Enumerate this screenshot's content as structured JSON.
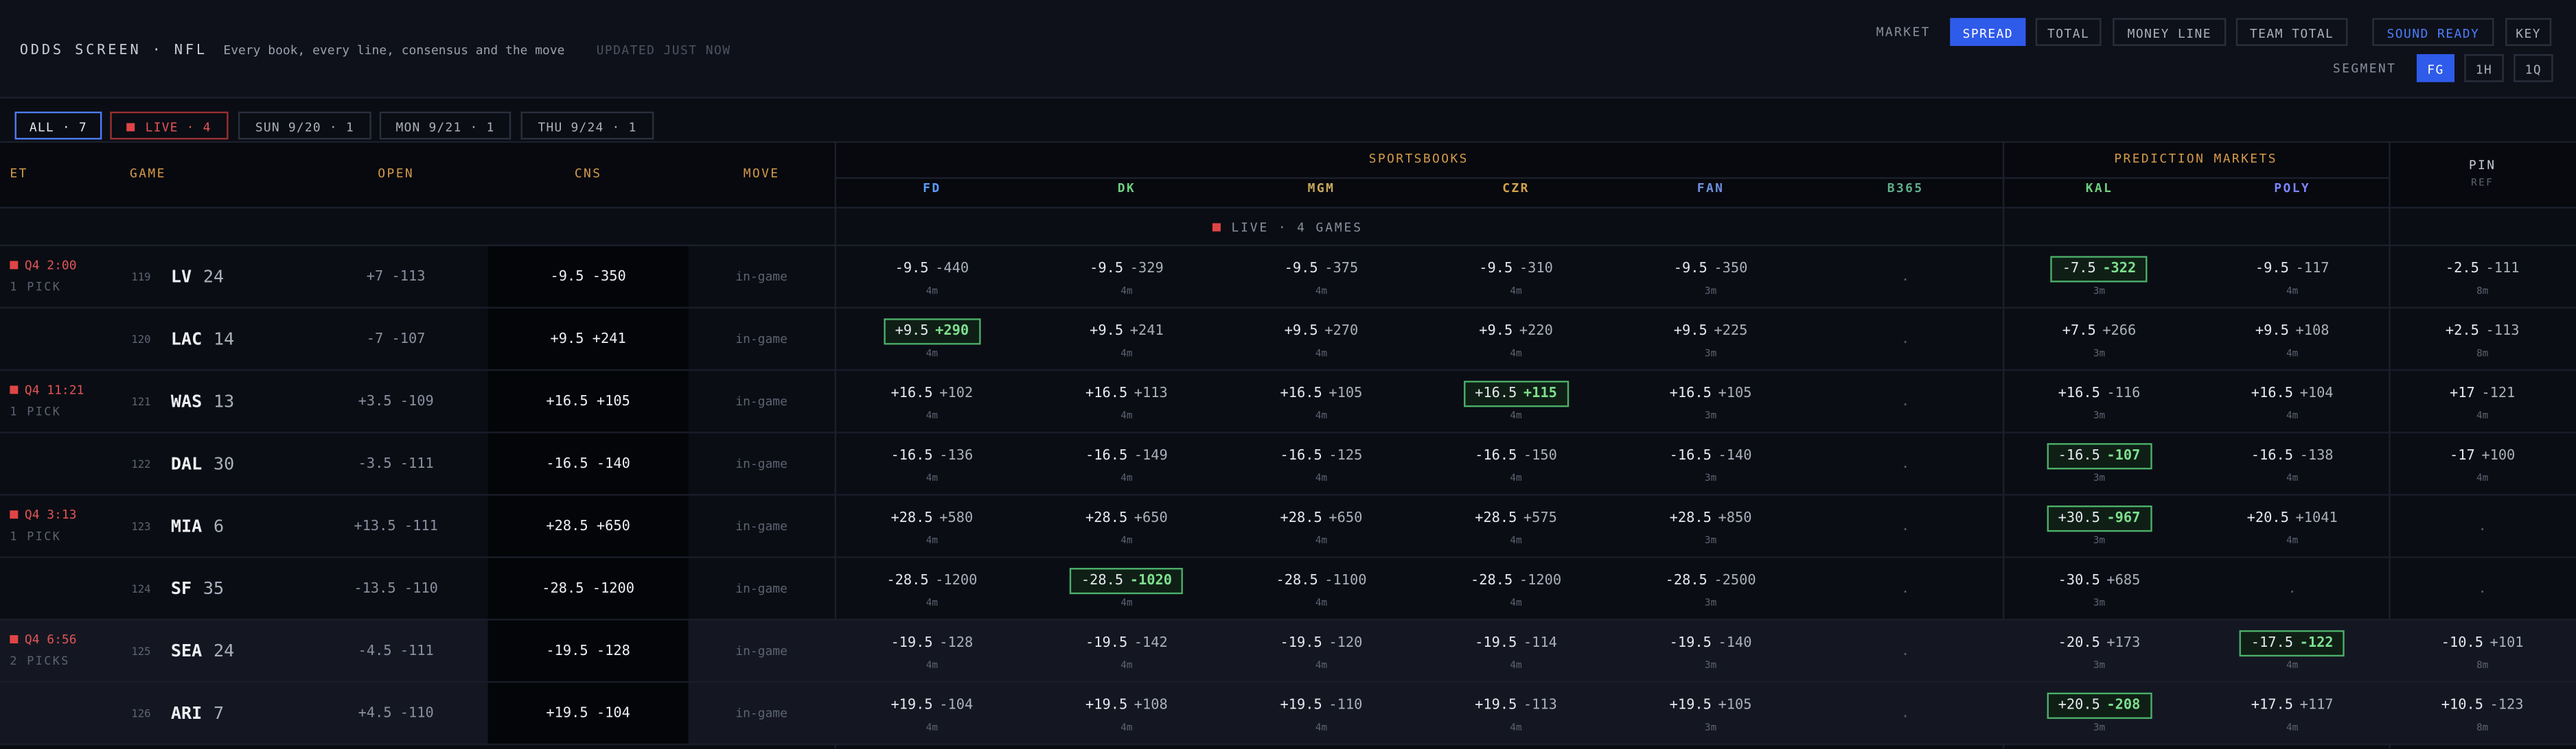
{
  "header": {
    "title": "ODDS SCREEN · NFL",
    "subtitle": "Every book, every line, consensus and the move",
    "status": "UPDATED JUST NOW"
  },
  "controls": {
    "market_label": "MARKET",
    "markets": [
      "SPREAD",
      "TOTAL",
      "MONEY LINE",
      "TEAM TOTAL"
    ],
    "active_market": 0,
    "sound": "SOUND READY",
    "key": "KEY",
    "segment_label": "SEGMENT",
    "segments": [
      "FG",
      "1H",
      "1Q"
    ],
    "active_segment": 0
  },
  "filters": [
    {
      "label": "ALL · 7"
    },
    {
      "label": "LIVE · 4",
      "live": true
    },
    {
      "label": "SUN 9/20 · 1"
    },
    {
      "label": "MON 9/21 · 1"
    },
    {
      "label": "THU 9/24 · 1"
    }
  ],
  "active_filter": 0,
  "columns": {
    "et": "ET",
    "game": "GAME",
    "open": "OPEN",
    "cns": "CNS",
    "move": "MOVE",
    "groups": [
      {
        "label": "SPORTSBOOKS",
        "books": [
          {
            "name": "FD",
            "color": "#5b9bff"
          },
          {
            "name": "DK",
            "color": "#6fcf7f"
          },
          {
            "name": "MGM",
            "color": "#c9a85c"
          },
          {
            "name": "CZR",
            "color": "#d4a24c"
          },
          {
            "name": "FAN",
            "color": "#6f8fe0"
          },
          {
            "name": "B365",
            "color": "#5fae8a"
          }
        ]
      },
      {
        "label": "PREDICTION MARKETS",
        "books": [
          {
            "name": "KAL",
            "color": "#6fcf7f"
          },
          {
            "name": "POLY",
            "color": "#7b84ff"
          }
        ]
      }
    ],
    "ref": {
      "name": "PIN",
      "note": "REF"
    }
  },
  "section": "LIVE · 4 GAMES",
  "games": [
    {
      "status": "Q4 2:00",
      "picks": "1 PICK",
      "highlight": false,
      "teams": [
        {
          "rot": 119,
          "team": "LV",
          "score": 24,
          "open": "+7 -113",
          "cns": "-9.5 -350",
          "move": "in-game",
          "cells": [
            {
              "line": "-9.5",
              "price": "-440",
              "age": "4m"
            },
            {
              "line": "-9.5",
              "price": "-329",
              "age": "4m"
            },
            {
              "line": "-9.5",
              "price": "-375",
              "age": "4m"
            },
            {
              "line": "-9.5",
              "price": "-310",
              "age": "4m"
            },
            {
              "line": "-9.5",
              "price": "-350",
              "age": "3m"
            },
            ".",
            {
              "line": "-7.5",
              "price": "-322",
              "age": "3m",
              "best": true
            },
            {
              "line": "-9.5",
              "price": "-117",
              "age": "4m"
            },
            {
              "line": "-2.5",
              "price": "-111",
              "age": "8m"
            }
          ]
        },
        {
          "rot": 120,
          "team": "LAC",
          "score": 14,
          "open": "-7 -107",
          "cns": "+9.5 +241",
          "move": "in-game",
          "cells": [
            {
              "line": "+9.5",
              "price": "+290",
              "age": "4m",
              "best": true
            },
            {
              "line": "+9.5",
              "price": "+241",
              "age": "4m"
            },
            {
              "line": "+9.5",
              "price": "+270",
              "age": "4m"
            },
            {
              "line": "+9.5",
              "price": "+220",
              "age": "4m"
            },
            {
              "line": "+9.5",
              "price": "+225",
              "age": "3m"
            },
            ".",
            {
              "line": "+7.5",
              "price": "+266",
              "age": "3m"
            },
            {
              "line": "+9.5",
              "price": "+108",
              "age": "4m"
            },
            {
              "line": "+2.5",
              "price": "-113",
              "age": "8m"
            }
          ]
        }
      ]
    },
    {
      "status": "Q4 11:21",
      "picks": "1 PICK",
      "highlight": false,
      "teams": [
        {
          "rot": 121,
          "team": "WAS",
          "score": 13,
          "open": "+3.5 -109",
          "cns": "+16.5 +105",
          "move": "in-game",
          "cells": [
            {
              "line": "+16.5",
              "price": "+102",
              "age": "4m"
            },
            {
              "line": "+16.5",
              "price": "+113",
              "age": "4m"
            },
            {
              "line": "+16.5",
              "price": "+105",
              "age": "4m"
            },
            {
              "line": "+16.5",
              "price": "+115",
              "age": "4m",
              "best": true
            },
            {
              "line": "+16.5",
              "price": "+105",
              "age": "3m"
            },
            ".",
            {
              "line": "+16.5",
              "price": "-116",
              "age": "3m"
            },
            {
              "line": "+16.5",
              "price": "+104",
              "age": "4m"
            },
            {
              "line": "+17",
              "price": "-121",
              "age": "4m"
            }
          ]
        },
        {
          "rot": 122,
          "team": "DAL",
          "score": 30,
          "open": "-3.5 -111",
          "cns": "-16.5 -140",
          "move": "in-game",
          "cells": [
            {
              "line": "-16.5",
              "price": "-136",
              "age": "4m"
            },
            {
              "line": "-16.5",
              "price": "-149",
              "age": "4m"
            },
            {
              "line": "-16.5",
              "price": "-125",
              "age": "4m"
            },
            {
              "line": "-16.5",
              "price": "-150",
              "age": "4m"
            },
            {
              "line": "-16.5",
              "price": "-140",
              "age": "3m"
            },
            ".",
            {
              "line": "-16.5",
              "price": "-107",
              "age": "3m",
              "best": true
            },
            {
              "line": "-16.5",
              "price": "-138",
              "age": "4m"
            },
            {
              "line": "-17",
              "price": "+100",
              "age": "4m"
            }
          ]
        }
      ]
    },
    {
      "status": "Q4 3:13",
      "picks": "1 PICK",
      "highlight": false,
      "teams": [
        {
          "rot": 123,
          "team": "MIA",
          "score": 6,
          "open": "+13.5 -111",
          "cns": "+28.5 +650",
          "move": "in-game",
          "cells": [
            {
              "line": "+28.5",
              "price": "+580",
              "age": "4m"
            },
            {
              "line": "+28.5",
              "price": "+650",
              "age": "4m"
            },
            {
              "line": "+28.5",
              "price": "+650",
              "age": "4m"
            },
            {
              "line": "+28.5",
              "price": "+575",
              "age": "4m"
            },
            {
              "line": "+28.5",
              "price": "+850",
              "age": "3m"
            },
            ".",
            {
              "line": "+30.5",
              "price": "-967",
              "age": "3m",
              "best": true
            },
            {
              "line": "+20.5",
              "price": "+1041",
              "age": "4m"
            },
            "."
          ]
        },
        {
          "rot": 124,
          "team": "SF",
          "score": 35,
          "open": "-13.5 -110",
          "cns": "-28.5 -1200",
          "move": "in-game",
          "cells": [
            {
              "line": "-28.5",
              "price": "-1200",
              "age": "4m"
            },
            {
              "line": "-28.5",
              "price": "-1020",
              "age": "4m",
              "best": true
            },
            {
              "line": "-28.5",
              "price": "-1100",
              "age": "4m"
            },
            {
              "line": "-28.5",
              "price": "-1200",
              "age": "4m"
            },
            {
              "line": "-28.5",
              "price": "-2500",
              "age": "3m"
            },
            ".",
            {
              "line": "-30.5",
              "price": "+685",
              "age": "3m"
            },
            ".",
            "."
          ]
        }
      ]
    },
    {
      "status": "Q4 6:56",
      "picks": "2 PICKS",
      "highlight": true,
      "teams": [
        {
          "rot": 125,
          "team": "SEA",
          "score": 24,
          "open": "-4.5 -111",
          "cns": "-19.5 -128",
          "move": "in-game",
          "cells": [
            {
              "line": "-19.5",
              "price": "-128",
              "age": "4m"
            },
            {
              "line": "-19.5",
              "price": "-142",
              "age": "4m"
            },
            {
              "line": "-19.5",
              "price": "-120",
              "age": "4m"
            },
            {
              "line": "-19.5",
              "price": "-114",
              "age": "4m"
            },
            {
              "line": "-19.5",
              "price": "-140",
              "age": "3m"
            },
            ".",
            {
              "line": "-20.5",
              "price": "+173",
              "age": "3m"
            },
            {
              "line": "-17.5",
              "price": "-122",
              "age": "4m",
              "best": true
            },
            {
              "line": "-10.5",
              "price": "+101",
              "age": "8m"
            }
          ]
        },
        {
          "rot": 126,
          "team": "ARI",
          "score": 7,
          "open": "+4.5 -110",
          "cns": "+19.5 -104",
          "move": "in-game",
          "cells": [
            {
              "line": "+19.5",
              "price": "-104",
              "age": "4m"
            },
            {
              "line": "+19.5",
              "price": "+108",
              "age": "4m"
            },
            {
              "line": "+19.5",
              "price": "-110",
              "age": "4m"
            },
            {
              "line": "+19.5",
              "price": "-113",
              "age": "4m"
            },
            {
              "line": "+19.5",
              "price": "+105",
              "age": "3m"
            },
            ".",
            {
              "line": "+20.5",
              "price": "-208",
              "age": "3m",
              "best": true
            },
            {
              "line": "+17.5",
              "price": "+117",
              "age": "4m"
            },
            {
              "line": "+10.5",
              "price": "-123",
              "age": "8m"
            }
          ]
        }
      ]
    }
  ]
}
